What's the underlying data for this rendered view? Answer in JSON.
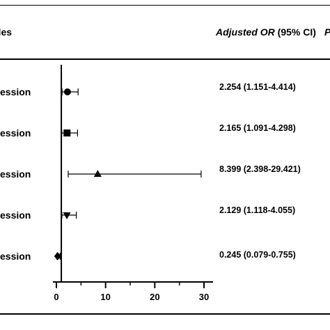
{
  "header": {
    "variables": "bles",
    "or_label": "Adjusted OR",
    "ci_label": "(95% CI)",
    "p_label": "P"
  },
  "rows": [
    {
      "label": "pression",
      "or_text": "2.254 (1.151-4.414)"
    },
    {
      "label": "pression",
      "or_text": "2.165 (1.091-4.298)"
    },
    {
      "label": "pression",
      "or_text": "8.399 (2.398-29.421)"
    },
    {
      "label": "pression",
      "or_text": "2.129 (1.118-4.055)"
    },
    {
      "label": "pression",
      "or_text": "0.245 (0.079-0.755)"
    }
  ],
  "chart_data": {
    "type": "scatter",
    "orientation": "horizontal-forest",
    "xlabel": "",
    "ylabel": "",
    "xlim": [
      0,
      30
    ],
    "xticks": [
      0,
      10,
      20,
      30
    ],
    "reference_line": 1,
    "points": [
      {
        "or": 2.254,
        "lower": 1.151,
        "upper": 4.414,
        "marker": "circle"
      },
      {
        "or": 2.165,
        "lower": 1.091,
        "upper": 4.298,
        "marker": "square"
      },
      {
        "or": 8.399,
        "lower": 2.398,
        "upper": 29.421,
        "marker": "triangle-up"
      },
      {
        "or": 2.129,
        "lower": 1.118,
        "upper": 4.055,
        "marker": "triangle-down"
      },
      {
        "or": 0.245,
        "lower": 0.079,
        "upper": 0.755,
        "marker": "diamond"
      }
    ],
    "grid": false,
    "marker_color": "#000000"
  }
}
